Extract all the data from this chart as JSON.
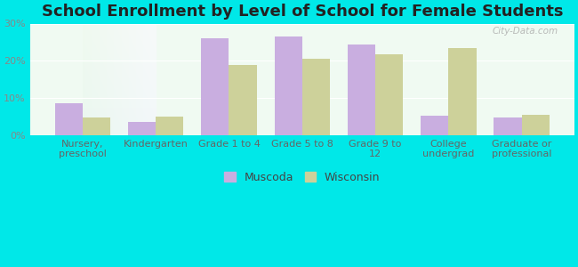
{
  "title": "School Enrollment by Level of School for Female Students",
  "categories": [
    "Nursery,\npreschool",
    "Kindergarten",
    "Grade 1 to 4",
    "Grade 5 to 8",
    "Grade 9 to\n12",
    "College\nundergrad",
    "Graduate or\nprofessional"
  ],
  "muscoda": [
    8.5,
    3.5,
    26.0,
    26.5,
    24.5,
    5.2,
    4.8
  ],
  "wisconsin": [
    4.8,
    4.9,
    18.8,
    20.5,
    21.8,
    23.5,
    5.5
  ],
  "muscoda_color": "#c9aee0",
  "wisconsin_color": "#cdd19a",
  "background_color": "#00e8e8",
  "plot_bg_top": "#e8f5e9",
  "plot_bg_bottom": "#e0f7f7",
  "ylim": [
    0,
    30
  ],
  "yticks": [
    0,
    10,
    20,
    30
  ],
  "ytick_labels": [
    "0%",
    "10%",
    "20%",
    "30%"
  ],
  "legend_labels": [
    "Muscoda",
    "Wisconsin"
  ],
  "bar_width": 0.38,
  "title_fontsize": 13,
  "tick_fontsize": 8,
  "legend_fontsize": 9,
  "watermark": "City-Data.com"
}
